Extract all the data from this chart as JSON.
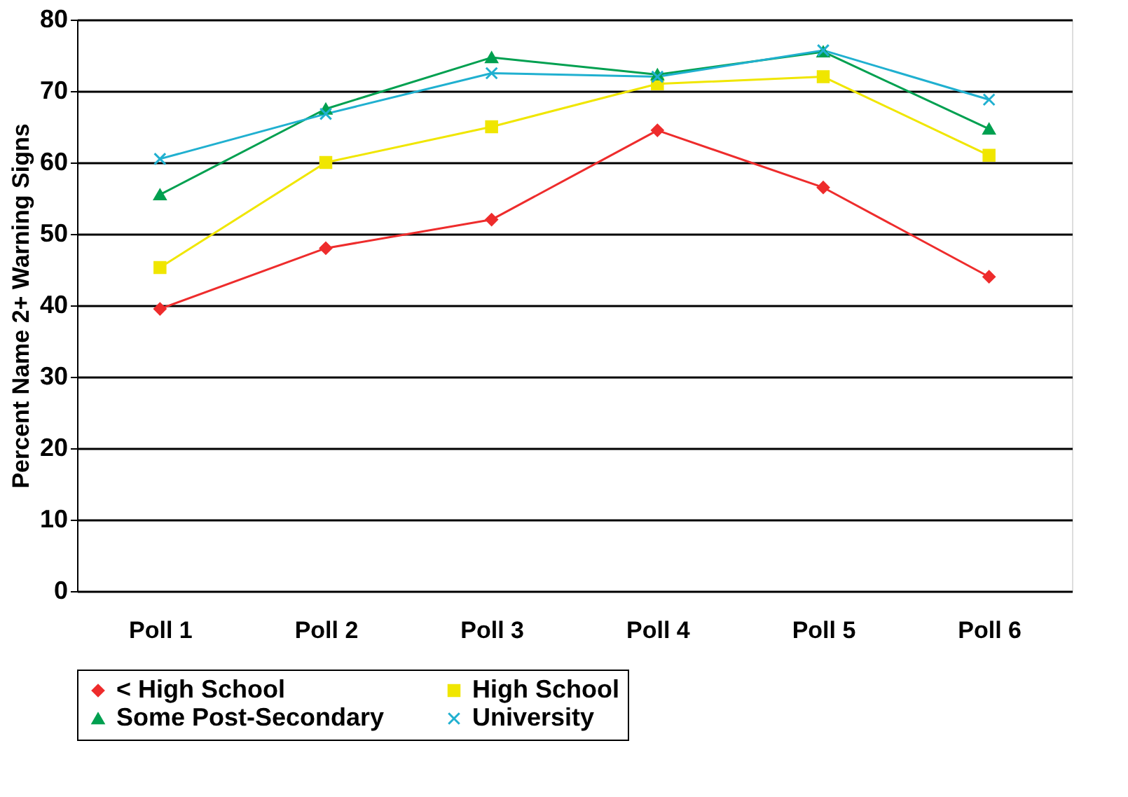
{
  "chart_data": {
    "type": "line",
    "ylabel": "Percent Name 2+ Warning Signs",
    "categories": [
      "Poll 1",
      "Poll 2",
      "Poll 3",
      "Poll 4",
      "Poll 5",
      "Poll 6"
    ],
    "ylim": [
      0,
      80
    ],
    "yticks": [
      0,
      10,
      20,
      30,
      40,
      50,
      60,
      70,
      80
    ],
    "grid": "y",
    "legend": "bottom",
    "line_style": "solid",
    "series": [
      {
        "name": "< High School",
        "color": "#ee2c2c",
        "marker": "diamond",
        "values": [
          39.5,
          48,
          52,
          64.5,
          56.5,
          44
        ]
      },
      {
        "name": "High School",
        "color": "#f0e600",
        "marker": "square",
        "values": [
          45.3,
          60,
          65,
          71,
          72,
          61
        ]
      },
      {
        "name": "Some Post-Secondary",
        "color": "#00a050",
        "marker": "triangle",
        "values": [
          55.5,
          67.5,
          74.7,
          72.3,
          75.5,
          64.7
        ]
      },
      {
        "name": "University",
        "color": "#20b0d0",
        "marker": "cross",
        "values": [
          60.5,
          66.8,
          72.5,
          72,
          75.7,
          68.8
        ]
      }
    ]
  }
}
